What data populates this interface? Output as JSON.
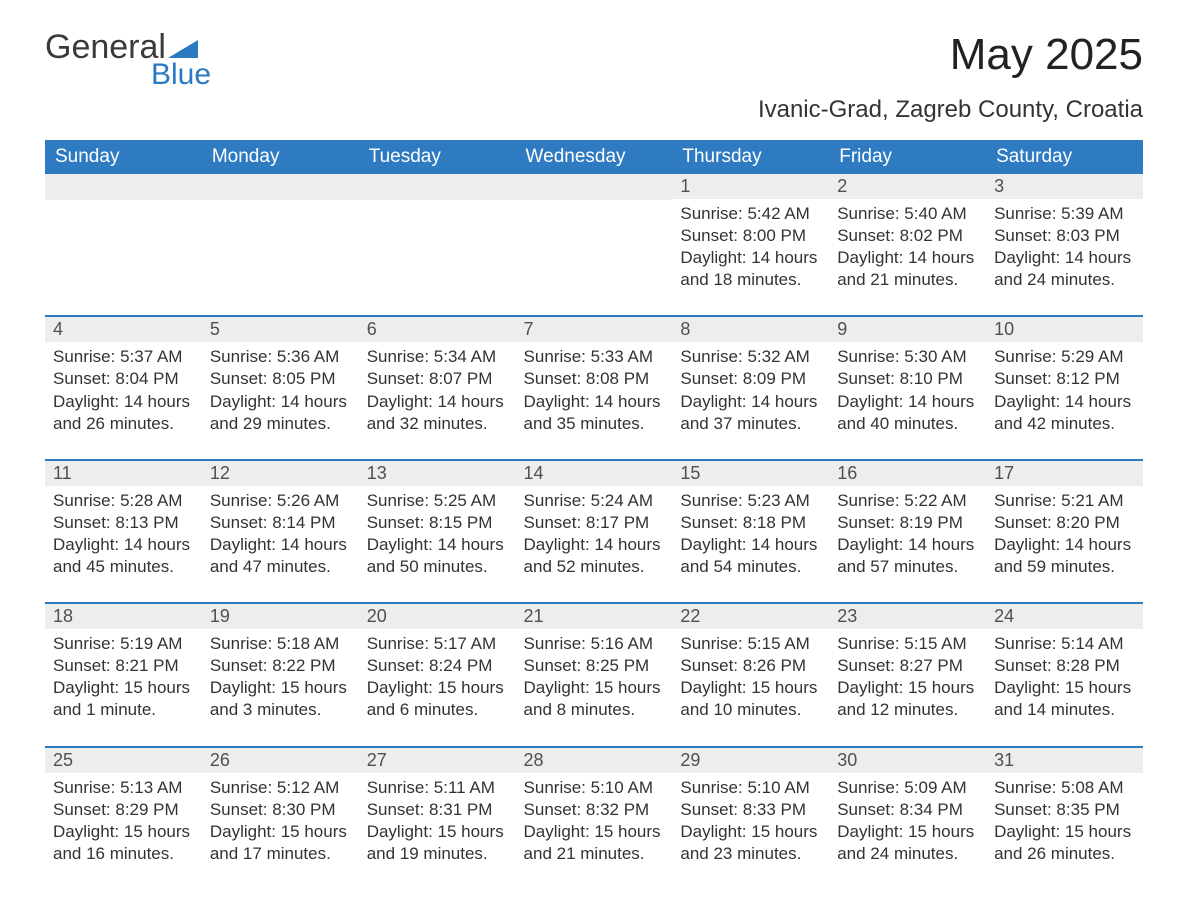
{
  "logo": {
    "brand_a": "General",
    "brand_b": "Blue",
    "brand_a_color": "#3a3a3a",
    "brand_b_color": "#2b79c2"
  },
  "title": "May 2025",
  "subtitle": "Ivanic-Grad, Zagreb County, Croatia",
  "colors": {
    "header_bg": "#2f7bc1",
    "header_text": "#ffffff",
    "daynum_bg": "#ededed",
    "daynum_text": "#505050",
    "body_text": "#333333",
    "row_border": "#2f7bc1",
    "page_bg": "#ffffff"
  },
  "fonts": {
    "title_size": 44,
    "subtitle_size": 24,
    "header_size": 19,
    "daynum_size": 18,
    "body_size": 17
  },
  "weekdays": [
    "Sunday",
    "Monday",
    "Tuesday",
    "Wednesday",
    "Thursday",
    "Friday",
    "Saturday"
  ],
  "weeks": [
    [
      {
        "empty": true
      },
      {
        "empty": true
      },
      {
        "empty": true
      },
      {
        "empty": true
      },
      {
        "n": "1",
        "sunrise": "Sunrise: 5:42 AM",
        "sunset": "Sunset: 8:00 PM",
        "day1": "Daylight: 14 hours",
        "day2": "and 18 minutes."
      },
      {
        "n": "2",
        "sunrise": "Sunrise: 5:40 AM",
        "sunset": "Sunset: 8:02 PM",
        "day1": "Daylight: 14 hours",
        "day2": "and 21 minutes."
      },
      {
        "n": "3",
        "sunrise": "Sunrise: 5:39 AM",
        "sunset": "Sunset: 8:03 PM",
        "day1": "Daylight: 14 hours",
        "day2": "and 24 minutes."
      }
    ],
    [
      {
        "n": "4",
        "sunrise": "Sunrise: 5:37 AM",
        "sunset": "Sunset: 8:04 PM",
        "day1": "Daylight: 14 hours",
        "day2": "and 26 minutes."
      },
      {
        "n": "5",
        "sunrise": "Sunrise: 5:36 AM",
        "sunset": "Sunset: 8:05 PM",
        "day1": "Daylight: 14 hours",
        "day2": "and 29 minutes."
      },
      {
        "n": "6",
        "sunrise": "Sunrise: 5:34 AM",
        "sunset": "Sunset: 8:07 PM",
        "day1": "Daylight: 14 hours",
        "day2": "and 32 minutes."
      },
      {
        "n": "7",
        "sunrise": "Sunrise: 5:33 AM",
        "sunset": "Sunset: 8:08 PM",
        "day1": "Daylight: 14 hours",
        "day2": "and 35 minutes."
      },
      {
        "n": "8",
        "sunrise": "Sunrise: 5:32 AM",
        "sunset": "Sunset: 8:09 PM",
        "day1": "Daylight: 14 hours",
        "day2": "and 37 minutes."
      },
      {
        "n": "9",
        "sunrise": "Sunrise: 5:30 AM",
        "sunset": "Sunset: 8:10 PM",
        "day1": "Daylight: 14 hours",
        "day2": "and 40 minutes."
      },
      {
        "n": "10",
        "sunrise": "Sunrise: 5:29 AM",
        "sunset": "Sunset: 8:12 PM",
        "day1": "Daylight: 14 hours",
        "day2": "and 42 minutes."
      }
    ],
    [
      {
        "n": "11",
        "sunrise": "Sunrise: 5:28 AM",
        "sunset": "Sunset: 8:13 PM",
        "day1": "Daylight: 14 hours",
        "day2": "and 45 minutes."
      },
      {
        "n": "12",
        "sunrise": "Sunrise: 5:26 AM",
        "sunset": "Sunset: 8:14 PM",
        "day1": "Daylight: 14 hours",
        "day2": "and 47 minutes."
      },
      {
        "n": "13",
        "sunrise": "Sunrise: 5:25 AM",
        "sunset": "Sunset: 8:15 PM",
        "day1": "Daylight: 14 hours",
        "day2": "and 50 minutes."
      },
      {
        "n": "14",
        "sunrise": "Sunrise: 5:24 AM",
        "sunset": "Sunset: 8:17 PM",
        "day1": "Daylight: 14 hours",
        "day2": "and 52 minutes."
      },
      {
        "n": "15",
        "sunrise": "Sunrise: 5:23 AM",
        "sunset": "Sunset: 8:18 PM",
        "day1": "Daylight: 14 hours",
        "day2": "and 54 minutes."
      },
      {
        "n": "16",
        "sunrise": "Sunrise: 5:22 AM",
        "sunset": "Sunset: 8:19 PM",
        "day1": "Daylight: 14 hours",
        "day2": "and 57 minutes."
      },
      {
        "n": "17",
        "sunrise": "Sunrise: 5:21 AM",
        "sunset": "Sunset: 8:20 PM",
        "day1": "Daylight: 14 hours",
        "day2": "and 59 minutes."
      }
    ],
    [
      {
        "n": "18",
        "sunrise": "Sunrise: 5:19 AM",
        "sunset": "Sunset: 8:21 PM",
        "day1": "Daylight: 15 hours",
        "day2": "and 1 minute."
      },
      {
        "n": "19",
        "sunrise": "Sunrise: 5:18 AM",
        "sunset": "Sunset: 8:22 PM",
        "day1": "Daylight: 15 hours",
        "day2": "and 3 minutes."
      },
      {
        "n": "20",
        "sunrise": "Sunrise: 5:17 AM",
        "sunset": "Sunset: 8:24 PM",
        "day1": "Daylight: 15 hours",
        "day2": "and 6 minutes."
      },
      {
        "n": "21",
        "sunrise": "Sunrise: 5:16 AM",
        "sunset": "Sunset: 8:25 PM",
        "day1": "Daylight: 15 hours",
        "day2": "and 8 minutes."
      },
      {
        "n": "22",
        "sunrise": "Sunrise: 5:15 AM",
        "sunset": "Sunset: 8:26 PM",
        "day1": "Daylight: 15 hours",
        "day2": "and 10 minutes."
      },
      {
        "n": "23",
        "sunrise": "Sunrise: 5:15 AM",
        "sunset": "Sunset: 8:27 PM",
        "day1": "Daylight: 15 hours",
        "day2": "and 12 minutes."
      },
      {
        "n": "24",
        "sunrise": "Sunrise: 5:14 AM",
        "sunset": "Sunset: 8:28 PM",
        "day1": "Daylight: 15 hours",
        "day2": "and 14 minutes."
      }
    ],
    [
      {
        "n": "25",
        "sunrise": "Sunrise: 5:13 AM",
        "sunset": "Sunset: 8:29 PM",
        "day1": "Daylight: 15 hours",
        "day2": "and 16 minutes."
      },
      {
        "n": "26",
        "sunrise": "Sunrise: 5:12 AM",
        "sunset": "Sunset: 8:30 PM",
        "day1": "Daylight: 15 hours",
        "day2": "and 17 minutes."
      },
      {
        "n": "27",
        "sunrise": "Sunrise: 5:11 AM",
        "sunset": "Sunset: 8:31 PM",
        "day1": "Daylight: 15 hours",
        "day2": "and 19 minutes."
      },
      {
        "n": "28",
        "sunrise": "Sunrise: 5:10 AM",
        "sunset": "Sunset: 8:32 PM",
        "day1": "Daylight: 15 hours",
        "day2": "and 21 minutes."
      },
      {
        "n": "29",
        "sunrise": "Sunrise: 5:10 AM",
        "sunset": "Sunset: 8:33 PM",
        "day1": "Daylight: 15 hours",
        "day2": "and 23 minutes."
      },
      {
        "n": "30",
        "sunrise": "Sunrise: 5:09 AM",
        "sunset": "Sunset: 8:34 PM",
        "day1": "Daylight: 15 hours",
        "day2": "and 24 minutes."
      },
      {
        "n": "31",
        "sunrise": "Sunrise: 5:08 AM",
        "sunset": "Sunset: 8:35 PM",
        "day1": "Daylight: 15 hours",
        "day2": "and 26 minutes."
      }
    ]
  ]
}
